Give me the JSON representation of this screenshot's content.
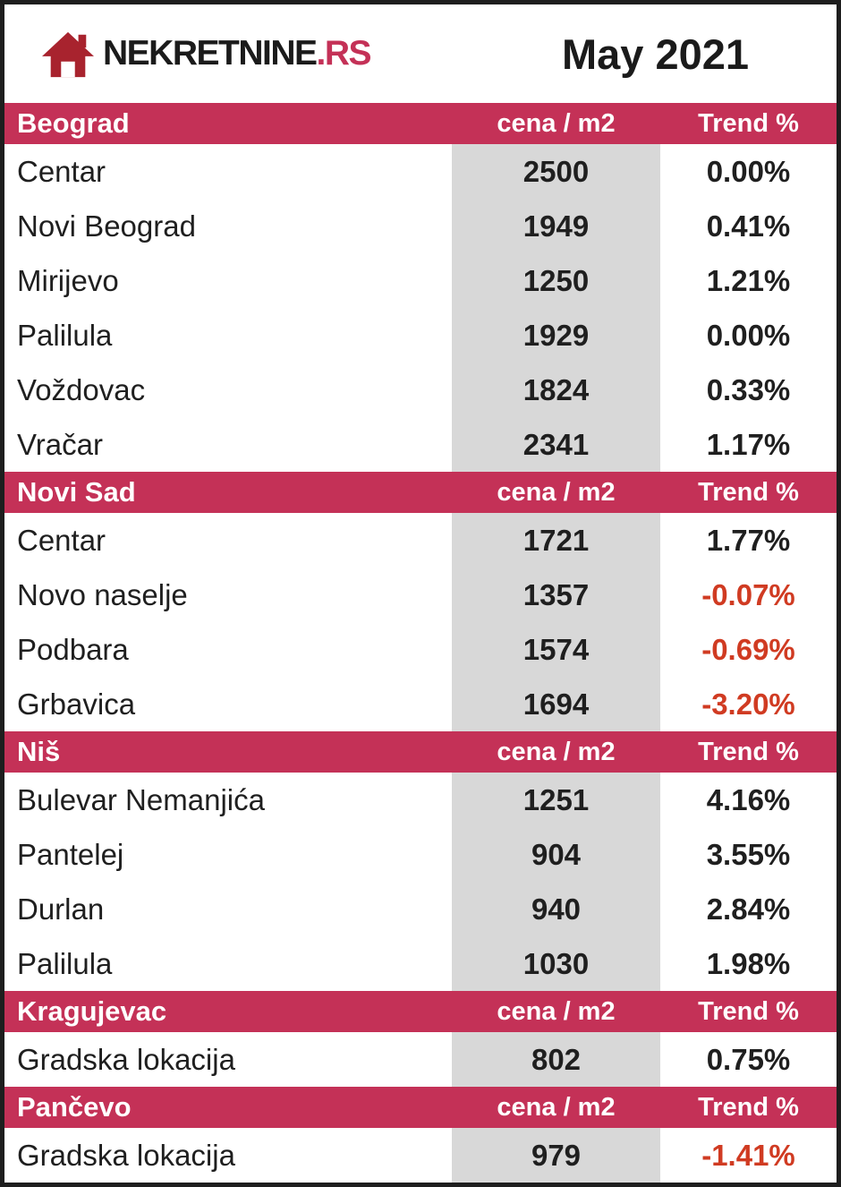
{
  "header": {
    "brand": {
      "name": "NEKRETNINE",
      "tld": ".RS"
    },
    "title": "May 2021"
  },
  "colors": {
    "accent": "#c43157",
    "logo_red": "#a8232e",
    "price_bg": "#d8d8d8",
    "negative": "#d03b22",
    "text": "#1f1f1f"
  },
  "icons": {
    "logo": "house-icon"
  },
  "chart_data": {
    "type": "table",
    "title": "May 2021",
    "columns": {
      "price": "cena / m2",
      "trend": "Trend %"
    },
    "sections": [
      {
        "city": "Beograd",
        "rows": [
          {
            "name": "Centar",
            "price": 2500,
            "trend": "0.00%"
          },
          {
            "name": "Novi Beograd",
            "price": 1949,
            "trend": "0.41%"
          },
          {
            "name": "Mirijevo",
            "price": 1250,
            "trend": "1.21%"
          },
          {
            "name": "Palilula",
            "price": 1929,
            "trend": "0.00%"
          },
          {
            "name": "Voždovac",
            "price": 1824,
            "trend": "0.33%"
          },
          {
            "name": "Vračar",
            "price": 2341,
            "trend": "1.17%"
          }
        ]
      },
      {
        "city": "Novi Sad",
        "rows": [
          {
            "name": "Centar",
            "price": 1721,
            "trend": "1.77%"
          },
          {
            "name": "Novo naselje",
            "price": 1357,
            "trend": "-0.07%"
          },
          {
            "name": "Podbara",
            "price": 1574,
            "trend": "-0.69%"
          },
          {
            "name": "Grbavica",
            "price": 1694,
            "trend": "-3.20%"
          }
        ]
      },
      {
        "city": "Niš",
        "rows": [
          {
            "name": "Bulevar Nemanjića",
            "price": 1251,
            "trend": "4.16%"
          },
          {
            "name": "Pantelej",
            "price": 904,
            "trend": "3.55%"
          },
          {
            "name": "Durlan",
            "price": 940,
            "trend": "2.84%"
          },
          {
            "name": "Palilula",
            "price": 1030,
            "trend": "1.98%"
          }
        ]
      },
      {
        "city": "Kragujevac",
        "rows": [
          {
            "name": "Gradska lokacija",
            "price": 802,
            "trend": "0.75%"
          }
        ]
      },
      {
        "city": "Pančevo",
        "rows": [
          {
            "name": "Gradska lokacija",
            "price": 979,
            "trend": "-1.41%"
          }
        ]
      }
    ]
  }
}
